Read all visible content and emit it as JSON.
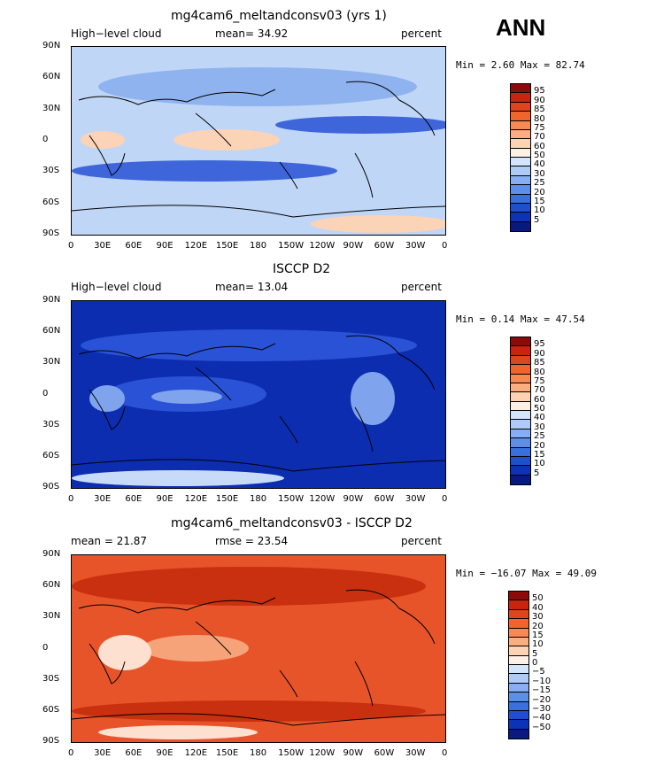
{
  "annotation": "ANN",
  "panels": [
    {
      "title": "mg4cam6_meltandconsv03 (yrs 1)",
      "left_label": "High−level cloud",
      "center_label": "mean=  34.92",
      "right_label": "percent",
      "minmax": "Min =   2.60 Max =  82.74",
      "levels": [
        "95",
        "90",
        "85",
        "80",
        "75",
        "70",
        "60",
        "50",
        "40",
        "30",
        "25",
        "20",
        "15",
        "10",
        "5"
      ],
      "colors": [
        "#8c0a0a",
        "#c8240e",
        "#e0441c",
        "#f0652e",
        "#f78a52",
        "#fbae80",
        "#fdd3b4",
        "#fff0e6",
        "#d4e5fb",
        "#aecbf7",
        "#86aef0",
        "#5e8fe8",
        "#3a6fde",
        "#1f4fcf",
        "#0d32b8",
        "#061a80"
      ],
      "map_colors": [
        "#c0d6f6",
        "#8fb3ee",
        "#3e66da",
        "#fbd3b7"
      ]
    },
    {
      "title": "ISCCP D2",
      "left_label": "High−level cloud",
      "center_label": "mean=  13.04",
      "right_label": "percent",
      "minmax": "Min =   0.14 Max =  47.54",
      "levels": [
        "95",
        "90",
        "85",
        "80",
        "75",
        "70",
        "60",
        "50",
        "40",
        "30",
        "25",
        "20",
        "15",
        "10",
        "5"
      ],
      "colors": [
        "#8c0a0a",
        "#c8240e",
        "#e0441c",
        "#f0652e",
        "#f78a52",
        "#fbae80",
        "#fdd3b4",
        "#fff0e6",
        "#d4e5fb",
        "#aecbf7",
        "#86aef0",
        "#5e8fe8",
        "#3a6fde",
        "#1f4fcf",
        "#0d32b8",
        "#061a80"
      ],
      "map_colors": [
        "#0c2db0",
        "#2a52d6",
        "#7fa3ec",
        "#c7dbf8"
      ]
    },
    {
      "title": "mg4cam6_meltandconsv03 - ISCCP D2",
      "left_label": "mean =   21.87",
      "center_label": "rmse =   23.54",
      "right_label": "percent",
      "minmax": "Min = −16.07 Max =  49.09",
      "levels": [
        "50",
        "40",
        "30",
        "20",
        "15",
        "10",
        "5",
        "0",
        "−5",
        "−10",
        "−15",
        "−20",
        "−30",
        "−40",
        "−50"
      ],
      "colors": [
        "#8c0a0a",
        "#c8240e",
        "#e0441c",
        "#f0652e",
        "#f78a52",
        "#fbae80",
        "#fdd3b4",
        "#fff0e6",
        "#d4e5fb",
        "#aecbf7",
        "#86aef0",
        "#5e8fe8",
        "#3a6fde",
        "#1f4fcf",
        "#0d32b8",
        "#061a80"
      ],
      "map_colors": [
        "#e8542a",
        "#c8300f",
        "#f7a37a",
        "#fde0cf"
      ]
    }
  ],
  "lat_ticks": [
    "90N",
    "60N",
    "30N",
    "0",
    "30S",
    "60S",
    "90S"
  ],
  "lon_ticks": [
    "0",
    "30E",
    "60E",
    "90E",
    "120E",
    "150E",
    "180",
    "150W",
    "120W",
    "90W",
    "60W",
    "30W",
    "0"
  ]
}
